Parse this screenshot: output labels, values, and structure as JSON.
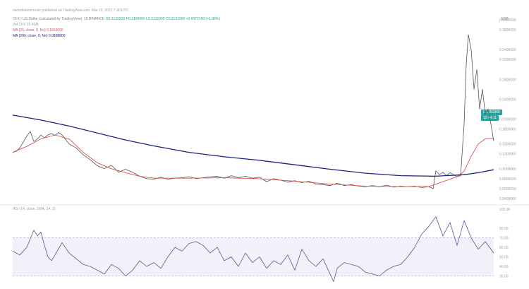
{
  "header": {
    "published_line": "metodebinomomo published on TradingView.com, Mar 10, 2022 7:30 UTC",
    "symbol_line": "CFX / US Dollar (calculated by TradingView), 15 BINANCE",
    "ohlc": "O0.3139300 H0.3199600 L0.3131000 C0.3131500 +0.0072100 (+1.98%)",
    "vol_line": "Vol CFX 25.42M",
    "ma_red_line": "MA (20, close, 0, No) 0.1659000",
    "ma_blue_line": "MA (200, close, 0, No) 0.0898800"
  },
  "price_axis": {
    "currency": "USD",
    "last_price_tag": "0.1551900",
    "last_price_time": "12:44:11"
  },
  "rsi_header": "RSI (14, close, SMA, 14, 2)",
  "chart_data": [
    {
      "type": "line",
      "name": "price-pane",
      "ylim": [
        0.03,
        0.4
      ],
      "y_ticks": [
        "0.4000000",
        "0.3800000",
        "0.3400000",
        "0.3200000",
        "0.2800000",
        "0.2400000",
        "0.2000000",
        "0.1800000",
        "0.1500000",
        "0.1300000",
        "0.1000000",
        "0.0800000",
        "0.0600000",
        "0.0400000"
      ],
      "series": [
        {
          "name": "Price",
          "color": "#555555",
          "x": [
            0,
            5,
            10,
            15,
            20,
            25,
            30,
            35,
            40,
            45,
            50,
            55,
            60,
            65,
            70,
            80,
            90,
            100,
            110,
            120,
            130,
            140,
            150,
            160,
            170,
            180,
            190,
            200,
            210,
            220,
            230,
            240,
            250,
            260,
            270,
            280,
            290,
            300,
            310,
            320,
            330,
            340,
            350,
            360,
            370,
            380,
            390,
            400,
            410,
            420,
            430,
            440,
            450,
            460,
            470,
            480,
            490,
            500,
            510,
            520,
            530,
            540,
            550,
            560,
            570,
            580,
            590,
            596,
            600,
            605,
            610,
            615,
            620,
            625,
            630,
            635,
            640,
            643,
            646,
            650,
            654,
            658,
            662,
            666,
            670,
            674,
            678,
            682
          ],
          "values": [
            0.133,
            0.135,
            0.142,
            0.154,
            0.166,
            0.175,
            0.155,
            0.16,
            0.168,
            0.162,
            0.168,
            0.171,
            0.167,
            0.173,
            0.168,
            0.15,
            0.142,
            0.128,
            0.118,
            0.106,
            0.1,
            0.107,
            0.093,
            0.099,
            0.093,
            0.085,
            0.08,
            0.079,
            0.083,
            0.079,
            0.081,
            0.082,
            0.084,
            0.08,
            0.082,
            0.084,
            0.085,
            0.081,
            0.086,
            0.082,
            0.085,
            0.081,
            0.083,
            0.074,
            0.08,
            0.077,
            0.073,
            0.076,
            0.072,
            0.075,
            0.069,
            0.068,
            0.066,
            0.071,
            0.066,
            0.068,
            0.065,
            0.064,
            0.066,
            0.064,
            0.067,
            0.063,
            0.065,
            0.064,
            0.065,
            0.062,
            0.064,
            0.06,
            0.096,
            0.088,
            0.093,
            0.086,
            0.092,
            0.088,
            0.084,
            0.086,
            0.19,
            0.31,
            0.37,
            0.34,
            0.26,
            0.3,
            0.22,
            0.26,
            0.21,
            0.22,
            0.19,
            0.156
          ]
        },
        {
          "name": "MA (20, close, 0, No)",
          "color": "#d9534f",
          "x": [
            0,
            20,
            40,
            60,
            80,
            100,
            120,
            140,
            160,
            180,
            200,
            250,
            300,
            350,
            400,
            450,
            500,
            550,
            590,
            610,
            630,
            640,
            650,
            660,
            670,
            682
          ],
          "values": [
            0.133,
            0.145,
            0.16,
            0.168,
            0.16,
            0.133,
            0.112,
            0.1,
            0.092,
            0.085,
            0.081,
            0.081,
            0.082,
            0.08,
            0.075,
            0.069,
            0.065,
            0.064,
            0.064,
            0.074,
            0.084,
            0.095,
            0.125,
            0.15,
            0.16,
            0.162
          ]
        },
        {
          "name": "MA (200, close, 0, No)",
          "color": "#1a237e",
          "x": [
            0,
            40,
            80,
            120,
            160,
            200,
            250,
            300,
            350,
            400,
            450,
            500,
            550,
            600,
            640,
            660,
            682
          ],
          "values": [
            0.208,
            0.198,
            0.186,
            0.172,
            0.158,
            0.146,
            0.133,
            0.124,
            0.117,
            0.108,
            0.099,
            0.091,
            0.086,
            0.085,
            0.088,
            0.092,
            0.098
          ]
        }
      ]
    },
    {
      "type": "line",
      "name": "rsi-pane",
      "ylim": [
        20,
        100
      ],
      "y_ticks": [
        "100.00",
        "80.00",
        "70.00",
        "60.00",
        "50.00",
        "40.00",
        "30.00"
      ],
      "series": [
        {
          "name": "RSI",
          "color": "#6a4c93",
          "x": [
            0,
            10,
            20,
            30,
            35,
            40,
            45,
            50,
            55,
            60,
            70,
            80,
            90,
            100,
            110,
            120,
            130,
            140,
            150,
            160,
            170,
            180,
            190,
            200,
            210,
            220,
            230,
            240,
            250,
            260,
            270,
            280,
            290,
            300,
            310,
            320,
            330,
            340,
            350,
            360,
            370,
            380,
            390,
            400,
            410,
            420,
            430,
            440,
            450,
            455,
            460,
            470,
            480,
            490,
            500,
            510,
            520,
            530,
            540,
            550,
            560,
            570,
            580,
            590,
            600,
            610,
            620,
            630,
            640,
            650,
            660,
            670,
            682
          ],
          "values": [
            56,
            52,
            60,
            78,
            72,
            76,
            62,
            50,
            46,
            52,
            65,
            54,
            48,
            42,
            40,
            36,
            32,
            42,
            38,
            30,
            36,
            46,
            40,
            44,
            38,
            50,
            60,
            56,
            64,
            66,
            62,
            54,
            60,
            46,
            50,
            40,
            54,
            44,
            50,
            38,
            46,
            42,
            52,
            36,
            58,
            46,
            40,
            48,
            32,
            24,
            38,
            44,
            42,
            40,
            34,
            32,
            30,
            36,
            40,
            42,
            50,
            60,
            74,
            82,
            92,
            72,
            86,
            62,
            88,
            70,
            58,
            66,
            54
          ]
        }
      ]
    }
  ]
}
